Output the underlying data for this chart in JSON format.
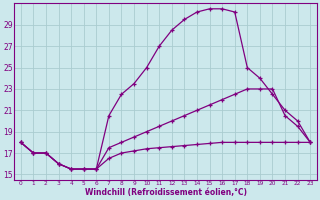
{
  "xlabel": "Windchill (Refroidissement éolien,°C)",
  "bg_color": "#cce8ec",
  "line_color": "#800080",
  "grid_color": "#aaccd0",
  "line1_x": [
    0,
    1,
    2,
    3,
    4,
    5,
    6,
    7,
    8,
    9,
    10,
    11,
    12,
    13,
    14,
    15,
    16,
    17,
    18,
    19,
    20,
    21,
    22,
    23
  ],
  "line1_y": [
    18.0,
    17.0,
    17.0,
    16.0,
    15.5,
    15.5,
    15.5,
    16.5,
    17.0,
    17.2,
    17.4,
    17.5,
    17.6,
    17.7,
    17.8,
    17.9,
    18.0,
    18.0,
    18.0,
    18.0,
    18.0,
    18.0,
    18.0,
    18.0
  ],
  "line2_x": [
    0,
    1,
    2,
    3,
    4,
    5,
    6,
    7,
    8,
    9,
    10,
    11,
    12,
    13,
    14,
    15,
    16,
    17,
    18,
    19,
    20,
    21,
    22,
    23
  ],
  "line2_y": [
    18.0,
    17.0,
    17.0,
    16.0,
    15.5,
    15.5,
    15.5,
    17.5,
    18.0,
    18.5,
    19.0,
    19.5,
    20.0,
    20.5,
    21.0,
    21.5,
    22.0,
    22.5,
    23.0,
    23.0,
    23.0,
    20.5,
    19.5,
    18.0
  ],
  "line3_x": [
    0,
    1,
    2,
    3,
    4,
    5,
    6,
    7,
    8,
    9,
    10,
    11,
    12,
    13,
    14,
    15,
    16,
    17,
    18,
    19,
    20,
    21,
    22,
    23
  ],
  "line3_y": [
    18.0,
    17.0,
    17.0,
    16.0,
    15.5,
    15.5,
    15.5,
    20.5,
    22.5,
    23.5,
    25.0,
    27.0,
    28.5,
    29.5,
    30.2,
    30.5,
    30.5,
    30.2,
    25.0,
    24.0,
    22.5,
    21.0,
    20.0,
    18.0
  ],
  "xlim": [
    -0.5,
    23.5
  ],
  "ylim": [
    14.5,
    31.0
  ],
  "xticks": [
    0,
    1,
    2,
    3,
    4,
    5,
    6,
    7,
    8,
    9,
    10,
    11,
    12,
    13,
    14,
    15,
    16,
    17,
    18,
    19,
    20,
    21,
    22,
    23
  ],
  "yticks": [
    15,
    17,
    19,
    21,
    23,
    25,
    27,
    29
  ]
}
